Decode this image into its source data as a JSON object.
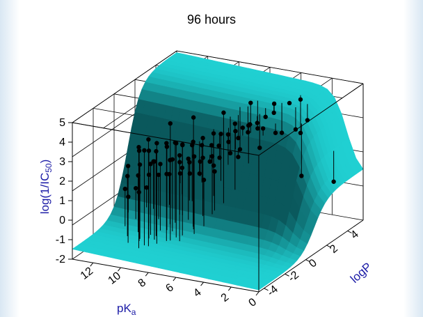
{
  "chart_data": {
    "type": "scatter",
    "subtype": "3d-surface-with-points",
    "title": "96 hours",
    "axes": {
      "x": {
        "label_main": "pK",
        "label_sub": "a",
        "ticks": [
          "12",
          "10",
          "8",
          "6",
          "4",
          "2",
          "0"
        ],
        "range": [
          0,
          13.5
        ]
      },
      "y": {
        "label": "logP",
        "ticks": [
          "-4",
          "-2",
          "0",
          "2",
          "4"
        ],
        "range": [
          -4.5,
          5.5
        ]
      },
      "z": {
        "label_main": "log(1/IC",
        "label_sub": "50",
        "label_end": ")",
        "ticks": [
          "5",
          "4",
          "3",
          "2",
          "1",
          "0",
          "-1",
          "-2"
        ],
        "range": [
          -2,
          5
        ]
      }
    },
    "surface_color": "#20d0d2",
    "point_color": "#000000",
    "grid": true,
    "points": [
      [
        9.5,
        -2.5,
        3.9
      ],
      [
        8.6,
        -1.6,
        4.5
      ],
      [
        7.6,
        -0.7,
        4.6
      ],
      [
        6.1,
        0.2,
        4.7
      ],
      [
        5.2,
        1.6,
        4.8
      ],
      [
        4.1,
        2.4,
        4.6
      ],
      [
        3.6,
        3.2,
        4.4
      ],
      [
        3.1,
        3.6,
        4.5
      ],
      [
        9.9,
        -2.9,
        3.6
      ],
      [
        9.2,
        -2.1,
        3.6
      ],
      [
        8.8,
        -1.7,
        3.5
      ],
      [
        8.4,
        -1.3,
        3.4
      ],
      [
        8.1,
        -1.1,
        3.3
      ],
      [
        7.7,
        -0.6,
        3.3
      ],
      [
        7.3,
        -0.2,
        3.4
      ],
      [
        6.9,
        0.3,
        3.5
      ],
      [
        6.6,
        0.6,
        3.4
      ],
      [
        6.3,
        0.9,
        3.3
      ],
      [
        6.0,
        1.2,
        3.4
      ],
      [
        5.7,
        1.5,
        3.5
      ],
      [
        5.4,
        1.8,
        3.6
      ],
      [
        5.1,
        2.1,
        3.6
      ],
      [
        4.8,
        2.5,
        3.8
      ],
      [
        4.5,
        2.9,
        3.9
      ],
      [
        10.4,
        -2.2,
        3.1
      ],
      [
        10.0,
        -1.8,
        3.0
      ],
      [
        9.7,
        -1.5,
        2.9
      ],
      [
        9.3,
        -1.0,
        3.0
      ],
      [
        9.0,
        -0.6,
        3.1
      ],
      [
        8.7,
        -0.3,
        2.9
      ],
      [
        8.3,
        0.1,
        2.8
      ],
      [
        7.9,
        0.5,
        2.7
      ],
      [
        7.5,
        0.9,
        2.6
      ],
      [
        7.2,
        1.2,
        2.5
      ],
      [
        6.8,
        1.6,
        2.6
      ],
      [
        6.4,
        2.0,
        2.7
      ],
      [
        6.0,
        2.4,
        2.9
      ],
      [
        5.6,
        2.8,
        3.0
      ],
      [
        10.9,
        -2.6,
        2.4
      ],
      [
        10.5,
        -2.0,
        2.3
      ],
      [
        10.1,
        -1.5,
        2.2
      ],
      [
        9.7,
        -1.1,
        2.1
      ],
      [
        9.3,
        -0.7,
        2.2
      ],
      [
        8.9,
        -0.3,
        2.0
      ],
      [
        8.5,
        0.1,
        1.9
      ],
      [
        8.1,
        0.6,
        1.8
      ],
      [
        7.7,
        1.0,
        1.7
      ],
      [
        7.3,
        1.4,
        1.8
      ],
      [
        6.9,
        1.9,
        1.9
      ],
      [
        6.5,
        2.3,
        2.0
      ],
      [
        11.4,
        -2.0,
        1.6
      ],
      [
        11.0,
        -1.5,
        1.5
      ],
      [
        10.6,
        -1.0,
        1.4
      ],
      [
        10.2,
        -0.6,
        1.3
      ],
      [
        9.8,
        -0.1,
        1.2
      ],
      [
        9.4,
        0.4,
        1.1
      ],
      [
        9.0,
        0.8,
        1.0
      ],
      [
        8.6,
        1.2,
        0.9
      ],
      [
        12.1,
        -1.3,
        0.6
      ],
      [
        11.7,
        -0.8,
        0.5
      ],
      [
        11.3,
        -0.3,
        0.4
      ],
      [
        12.4,
        -0.6,
        -0.1
      ],
      [
        12.0,
        -0.1,
        0.0
      ],
      [
        9.6,
        -1.8,
        2.5
      ],
      [
        8.9,
        -1.0,
        2.4
      ],
      [
        8.2,
        -0.4,
        2.3
      ],
      [
        7.6,
        0.2,
        2.2
      ],
      [
        9.1,
        0.2,
        1.5
      ],
      [
        7.8,
        1.5,
        1.3
      ],
      [
        10.8,
        -0.3,
        1.8
      ],
      [
        10.3,
        0.3,
        1.0
      ],
      [
        5.5,
        0.5,
        4.1
      ],
      [
        4.9,
        1.0,
        3.9
      ],
      [
        4.3,
        1.6,
        3.6
      ],
      [
        3.7,
        2.0,
        3.3
      ],
      [
        3.0,
        3.0,
        3.2
      ],
      [
        2.6,
        3.6,
        3.5
      ],
      [
        4.0,
        3.0,
        2.9
      ],
      [
        3.4,
        4.0,
        2.6
      ],
      [
        5.0,
        2.2,
        2.3
      ],
      [
        5.8,
        1.2,
        2.1
      ],
      [
        6.6,
        0.0,
        1.7
      ],
      [
        7.0,
        -0.5,
        1.4
      ],
      [
        9.8,
        -2.5,
        3.3
      ],
      [
        8.0,
        -1.5,
        2.9
      ],
      [
        7.4,
        -0.9,
        2.7
      ],
      [
        6.7,
        -0.1,
        2.5
      ],
      [
        2.2,
        2.5,
        1.1
      ],
      [
        1.0,
        4.0,
        0.4
      ]
    ]
  }
}
